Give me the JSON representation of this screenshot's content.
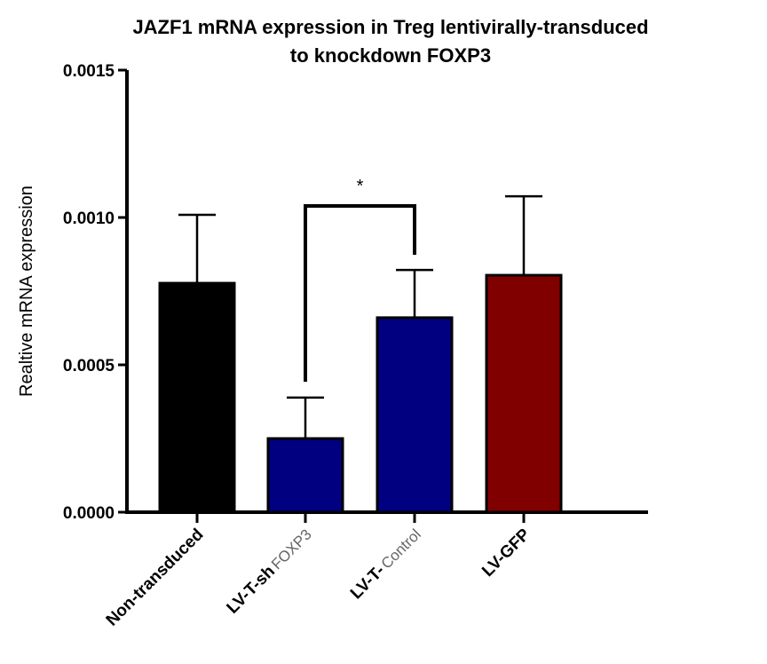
{
  "chart_data": {
    "type": "bar",
    "title": "JAZF1 mRNA expression in Treg lentivirally-transduced to knockdown FOXP3",
    "title_lines": [
      "JAZF1 mRNA expression in Treg lentivirally-transduced",
      "to knockdown FOXP3"
    ],
    "xlabel": "",
    "ylabel": "Realtive mRNA expression",
    "ylim": [
      0,
      0.0015
    ],
    "yticks": [
      "0.0000",
      "0.0005",
      "0.0010",
      "0.0015"
    ],
    "ytick_values": [
      0,
      0.0005,
      0.001,
      0.0015
    ],
    "categories": [
      {
        "bold": "Non-transduced",
        "light": ""
      },
      {
        "bold": "LV-T-sh",
        "light": "FOXP3"
      },
      {
        "bold": "LV-T-",
        "light": "Control"
      },
      {
        "bold": "LV-GFP",
        "light": ""
      }
    ],
    "values": [
      0.000777,
      0.00025,
      0.00066,
      0.000804
    ],
    "error_upper": [
      0.001009,
      0.000389,
      0.000822,
      0.001072
    ],
    "colors": [
      "#000000",
      "#000080",
      "#000080",
      "#800000"
    ],
    "annotation": {
      "label": "*",
      "between": [
        1,
        2
      ]
    },
    "grid": false,
    "legend": "none"
  }
}
